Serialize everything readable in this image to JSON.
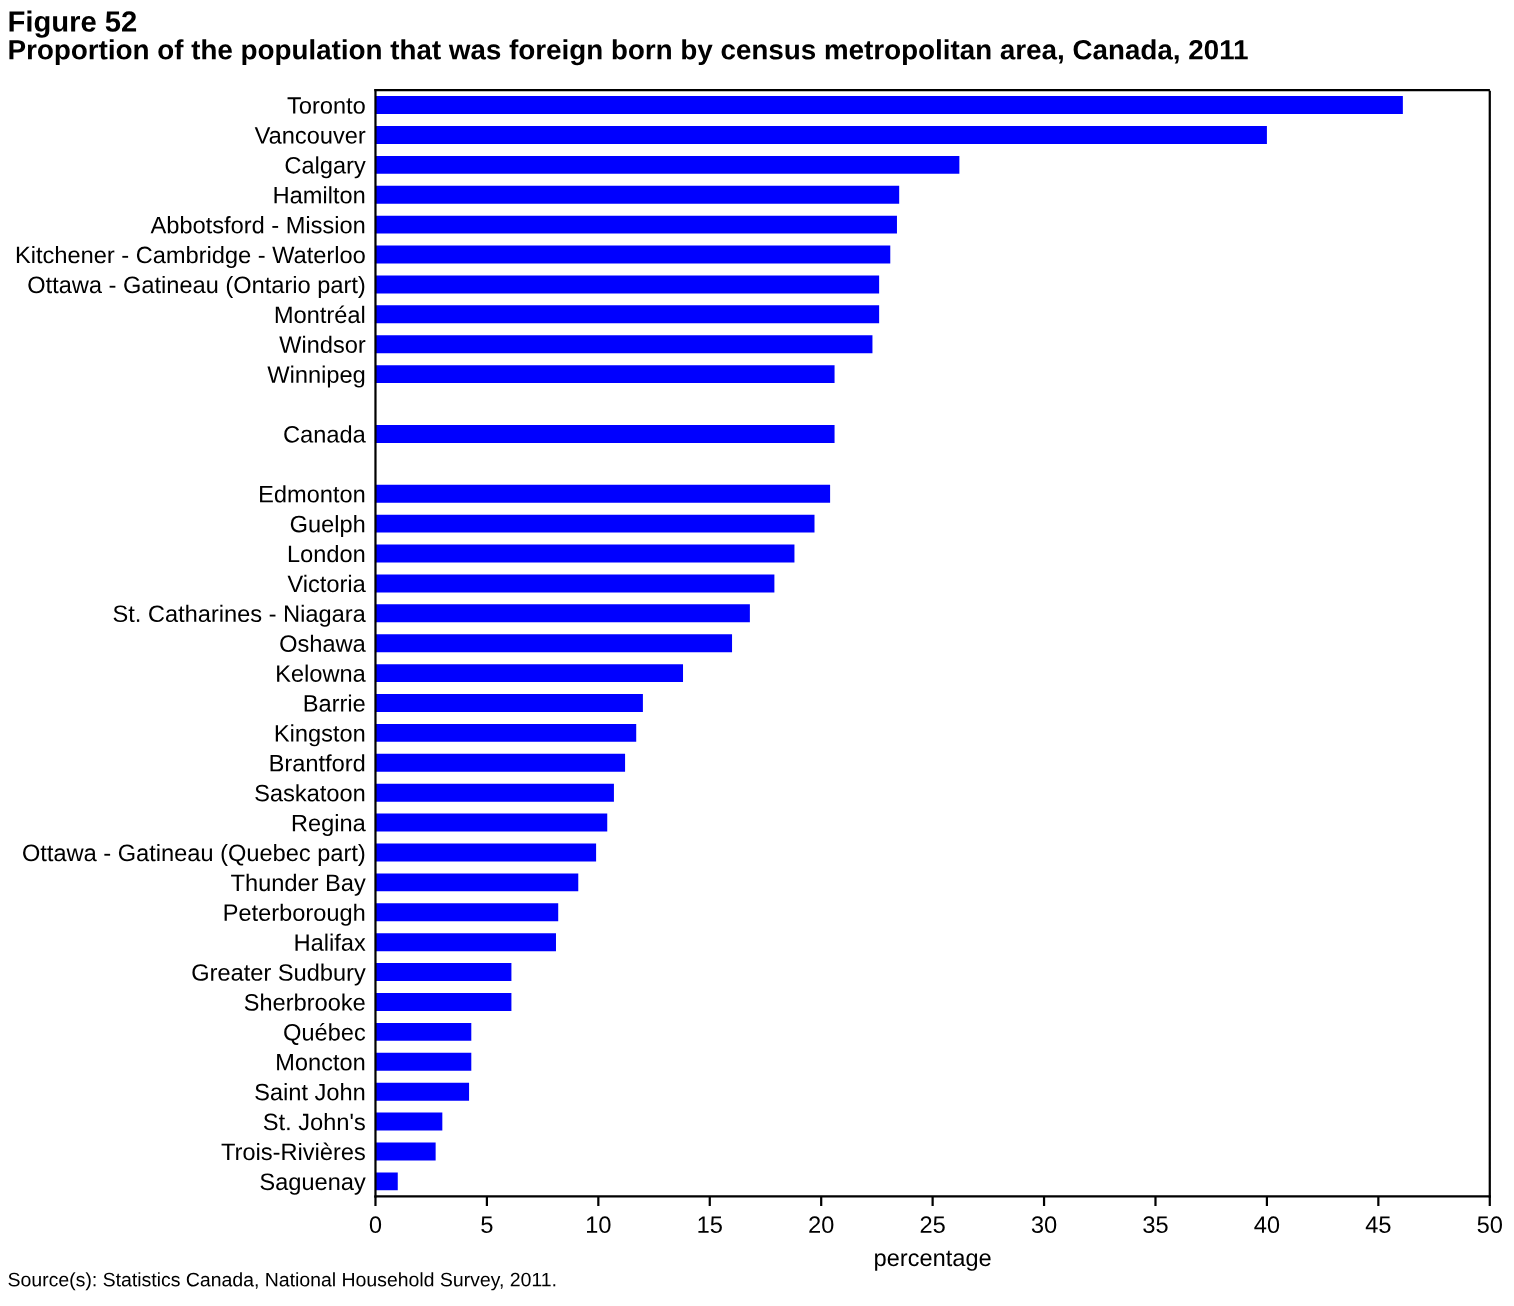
{
  "chart_data": {
    "type": "bar",
    "orientation": "horizontal",
    "title": "Figure 52",
    "subtitle": "Proportion of the population that was foreign born by census metropolitan area, Canada, 2011",
    "xlabel": "percentage",
    "categories": [
      "Toronto",
      "Vancouver",
      "Calgary",
      "Hamilton",
      "Abbotsford - Mission",
      "Kitchener - Cambridge - Waterloo",
      "Ottawa - Gatineau (Ontario part)",
      "Montréal",
      "Windsor",
      "Winnipeg",
      null,
      "Canada",
      null,
      "Edmonton",
      "Guelph",
      "London",
      "Victoria",
      "St. Catharines - Niagara",
      "Oshawa",
      "Kelowna",
      "Barrie",
      "Kingston",
      "Brantford",
      "Saskatoon",
      "Regina",
      "Ottawa - Gatineau (Quebec part)",
      "Thunder Bay",
      "Peterborough",
      "Halifax",
      "Greater Sudbury",
      "Sherbrooke",
      "Québec",
      "Moncton",
      "Saint John",
      "St. John's",
      "Trois-Rivières",
      "Saguenay"
    ],
    "values": [
      46.1,
      40.0,
      26.2,
      23.5,
      23.4,
      23.1,
      22.6,
      22.6,
      22.3,
      20.6,
      null,
      20.6,
      null,
      20.4,
      19.7,
      18.8,
      17.9,
      16.8,
      16.0,
      13.8,
      12.0,
      11.7,
      11.2,
      10.7,
      10.4,
      9.9,
      9.1,
      8.2,
      8.1,
      6.1,
      6.1,
      4.3,
      4.3,
      4.2,
      3.0,
      2.7,
      1.0
    ],
    "color": "#0000ff",
    "xlim": [
      0,
      50
    ],
    "xticks": [
      0,
      5,
      10,
      15,
      20,
      25,
      30,
      35,
      40,
      45,
      50
    ],
    "grid": false,
    "legend": false,
    "annotations": [
      "Source(s): Statistics Canada, National Household Survey, 2011."
    ]
  }
}
